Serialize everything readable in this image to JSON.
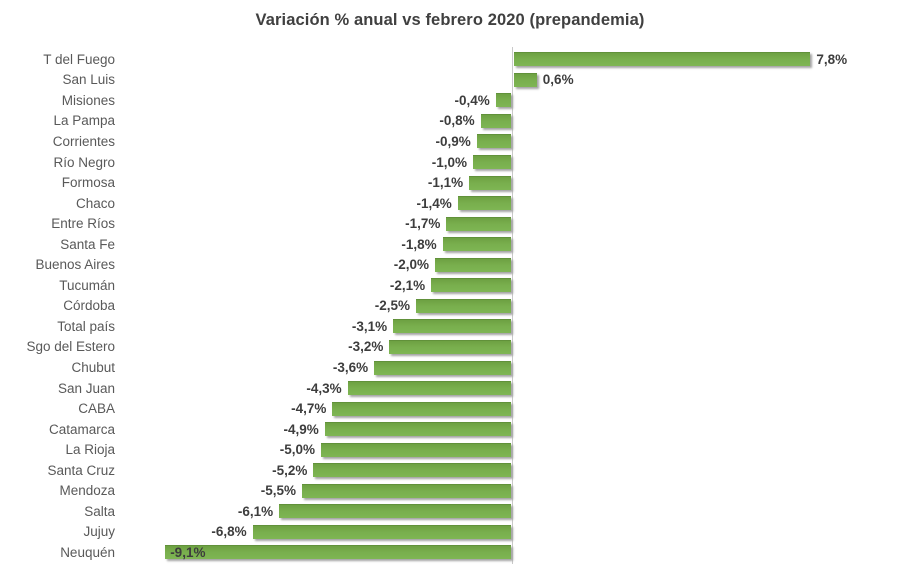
{
  "chart_data": {
    "type": "bar",
    "orientation": "horizontal",
    "title": "Variación % anual vs febrero 2020 (prepandemia)",
    "unit": "%",
    "decimal_separator": ",",
    "grid": false,
    "legend": false,
    "xlim": [
      -9.5,
      8.5
    ],
    "categories": [
      "T del Fuego",
      "San Luis",
      "Misiones",
      "La Pampa",
      "Corrientes",
      "Río Negro",
      "Formosa",
      "Chaco",
      "Entre Ríos",
      "Santa Fe",
      "Buenos Aires",
      "Tucumán",
      "Córdoba",
      "Total país",
      "Sgo del Estero",
      "Chubut",
      "San Juan",
      "CABA",
      "Catamarca",
      "La Rioja",
      "Santa Cruz",
      "Mendoza",
      "Salta",
      "Jujuy",
      "Neuquén"
    ],
    "values": [
      7.8,
      0.6,
      -0.4,
      -0.8,
      -0.9,
      -1.0,
      -1.1,
      -1.4,
      -1.7,
      -1.8,
      -2.0,
      -2.1,
      -2.5,
      -3.1,
      -3.2,
      -3.6,
      -4.3,
      -4.7,
      -4.9,
      -5.0,
      -5.2,
      -5.5,
      -6.1,
      -6.8,
      -9.1
    ],
    "value_labels": [
      "7,8%",
      "0,6%",
      "-0,4%",
      "-0,8%",
      "-0,9%",
      "-1,0%",
      "-1,1%",
      "-1,4%",
      "-1,7%",
      "-1,8%",
      "-2,0%",
      "-2,1%",
      "-2,5%",
      "-3,1%",
      "-3,2%",
      "-3,6%",
      "-4,3%",
      "-4,7%",
      "-4,9%",
      "-5,0%",
      "-5,2%",
      "-5,5%",
      "-6,1%",
      "-6,8%",
      "-9,1%"
    ],
    "colors": {
      "bar_fill": "#76ac4b",
      "bar_edge": "#61913a",
      "bar_shadow": "#a3a3a3",
      "title_text": "#404040",
      "category_text": "#595959",
      "value_text": "#3d3d3d",
      "axis_line": "#c9c9c9",
      "background": "#ffffff"
    }
  }
}
